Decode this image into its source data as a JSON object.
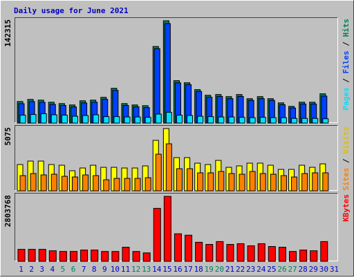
{
  "chart_data": [
    {
      "type": "bar",
      "title": "Daily usage for June 2021",
      "ylim": [
        0,
        142315
      ],
      "yticks": [
        142315
      ],
      "series": [
        {
          "name": "Hits",
          "color": "#00805c",
          "values": [
            30000,
            32900,
            31900,
            29000,
            27100,
            25200,
            31000,
            31900,
            35800,
            48400,
            27100,
            25200,
            24200,
            106500,
            142315,
            59000,
            56100,
            46500,
            38700,
            39700,
            36800,
            39700,
            33900,
            36800,
            33900,
            28100,
            23200,
            29000,
            29000,
            40700,
            null
          ]
        },
        {
          "name": "Files",
          "color": "#0040ff",
          "values": [
            27000,
            29900,
            28900,
            26000,
            24500,
            22500,
            28000,
            29000,
            33000,
            45500,
            24500,
            22500,
            21500,
            103500,
            138400,
            56000,
            53500,
            44000,
            36000,
            37000,
            34000,
            37000,
            31500,
            34000,
            31500,
            25500,
            21000,
            26500,
            26500,
            37500,
            null
          ]
        },
        {
          "name": "Pages",
          "color": "#00e0ff",
          "values": [
            11000,
            12000,
            13000,
            11500,
            11000,
            9500,
            10500,
            11500,
            9000,
            9000,
            8500,
            8500,
            8000,
            12500,
            15000,
            11000,
            10500,
            9500,
            9000,
            8500,
            8500,
            8000,
            7500,
            8000,
            7500,
            7500,
            6500,
            6500,
            6500,
            6000,
            null
          ]
        }
      ]
    },
    {
      "type": "bar",
      "ylim": [
        0,
        5075
      ],
      "yticks": [
        5075
      ],
      "series": [
        {
          "name": "Visits",
          "color": "#ffff00",
          "label_color": "#e0c000",
          "values": [
            2143,
            2425,
            2425,
            2143,
            2087,
            1636,
            1861,
            2087,
            1917,
            1917,
            1861,
            1861,
            2030,
            4117,
            5075,
            2707,
            2707,
            2256,
            2143,
            2481,
            1917,
            2030,
            2256,
            2256,
            2087,
            1748,
            1748,
            2087,
            1917,
            2199,
            null
          ]
        },
        {
          "name": "Sites",
          "color": "#ff8000",
          "values": [
            1241,
            1410,
            1297,
            1354,
            1184,
            1128,
            1297,
            1241,
            902,
            1015,
            1015,
            1015,
            1072,
            2989,
            3835,
            1805,
            1805,
            1466,
            1466,
            1579,
            1410,
            1354,
            1579,
            1410,
            1354,
            1241,
            1128,
            1410,
            1466,
            1466,
            null
          ]
        }
      ]
    },
    {
      "type": "bar",
      "ylim": [
        0,
        2803768
      ],
      "yticks": [
        2803768
      ],
      "categories": [
        "1",
        "2",
        "3",
        "4",
        "5",
        "6",
        "7",
        "8",
        "9",
        "10",
        "11",
        "12",
        "13",
        "14",
        "15",
        "16",
        "17",
        "18",
        "19",
        "20",
        "21",
        "22",
        "23",
        "24",
        "25",
        "26",
        "27",
        "28",
        "29",
        "30",
        "31"
      ],
      "category_colors": [
        "#0000c0",
        "#0000c0",
        "#0000c0",
        "#0000c0",
        "#008060",
        "#008060",
        "#0000c0",
        "#0000c0",
        "#0000c0",
        "#0000c0",
        "#0000c0",
        "#008060",
        "#008060",
        "#0000c0",
        "#0000c0",
        "#0000c0",
        "#0000c0",
        "#0000c0",
        "#008060",
        "#008060",
        "#0000c0",
        "#0000c0",
        "#0000c0",
        "#0000c0",
        "#0000c0",
        "#008060",
        "#008060",
        "#0000c0",
        "#0000c0",
        "#0000c0",
        "#0000c0"
      ],
      "series": [
        {
          "name": "KBytes",
          "color": "#ff0000",
          "values": [
            518000,
            518000,
            518000,
            457000,
            427000,
            427000,
            488000,
            488000,
            427000,
            427000,
            610000,
            427000,
            366000,
            2286000,
            2803768,
            1189000,
            1128000,
            823000,
            731000,
            853000,
            731000,
            762000,
            670000,
            762000,
            640000,
            610000,
            427000,
            488000,
            457000,
            853000,
            null
          ]
        }
      ]
    }
  ]
}
